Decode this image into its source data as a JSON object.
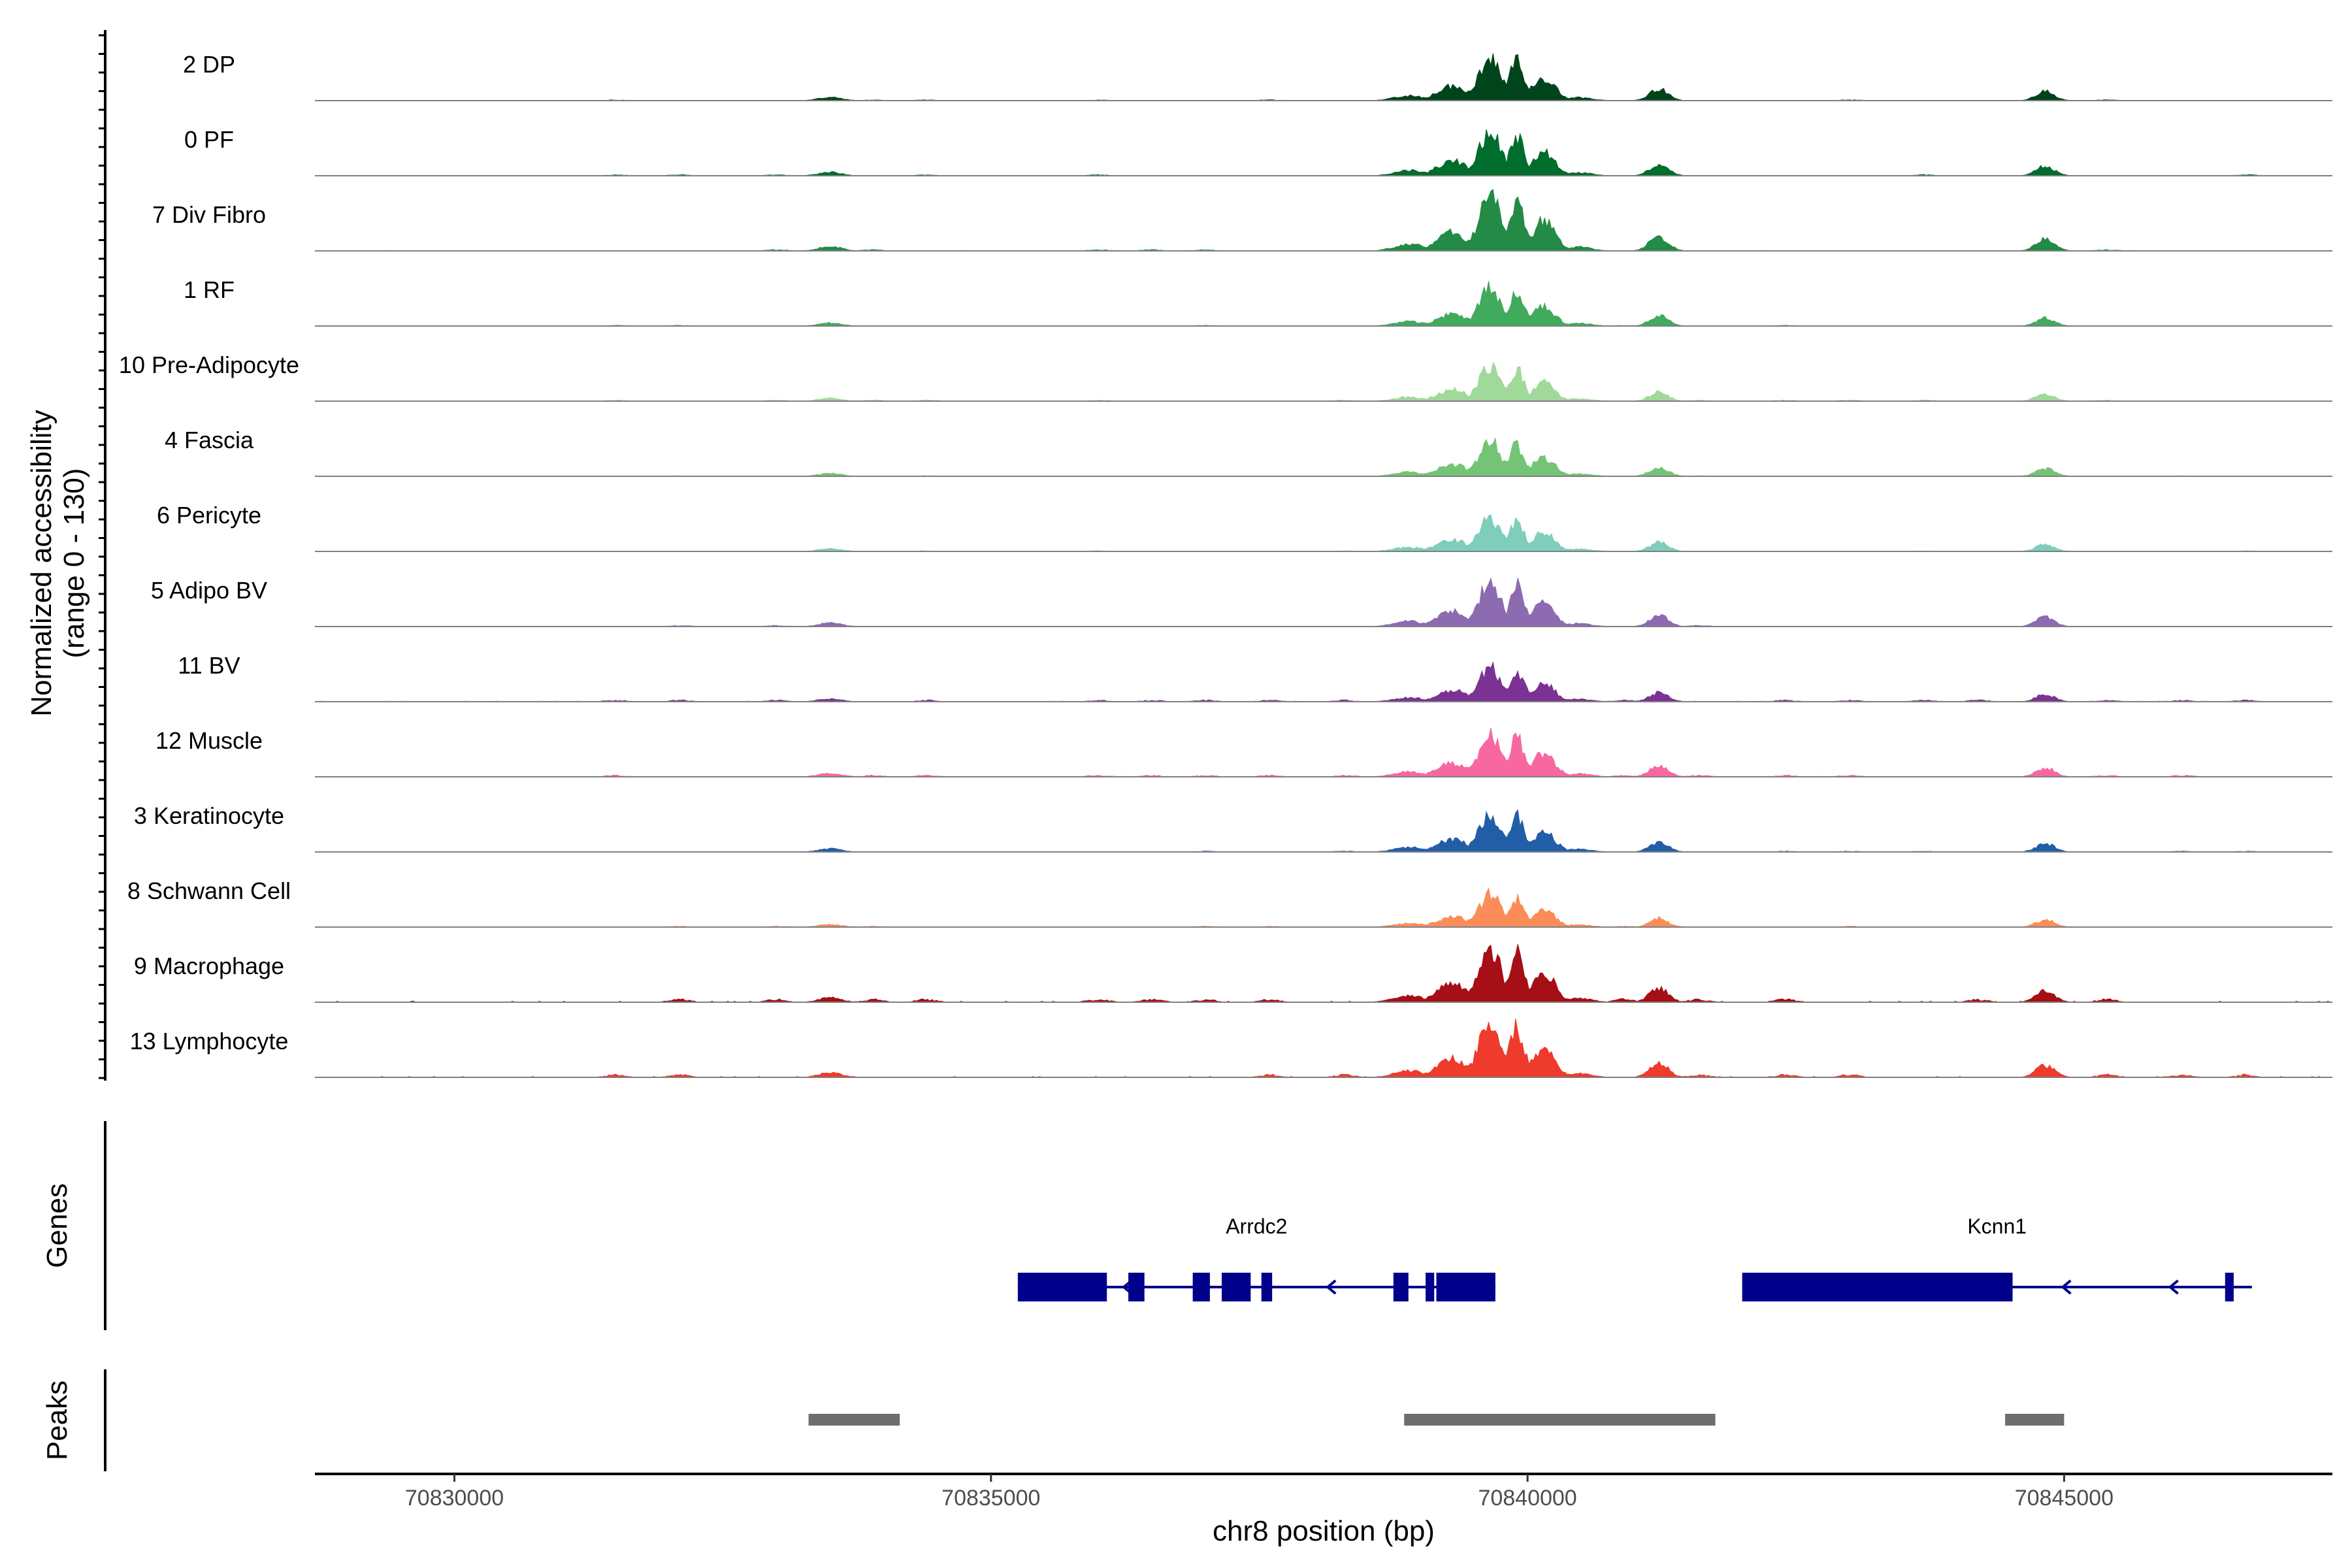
{
  "chart_data": {
    "type": "area",
    "region": {
      "chromosome": "chr8",
      "start": 70828700,
      "end": 70847500
    },
    "coverage": {
      "ylabel_line1": "Normalized accessibility",
      "ylabel_line2": "(range 0 - 130)",
      "ylim": [
        0,
        130
      ],
      "tracks": [
        {
          "name": "2 DP",
          "color": "#00441b",
          "scale": 0.78,
          "noise": 0.4
        },
        {
          "name": "0 PF",
          "color": "#006d2c",
          "scale": 0.8,
          "noise": 0.55
        },
        {
          "name": "7 Div Fibro",
          "color": "#238b45",
          "scale": 1.0,
          "noise": 0.5
        },
        {
          "name": "1 RF",
          "color": "#41ab5d",
          "scale": 0.68,
          "noise": 0.45
        },
        {
          "name": "10 Pre-Adipocyte",
          "color": "#a1d99b",
          "scale": 0.62,
          "noise": 0.75
        },
        {
          "name": "4 Fascia",
          "color": "#74c476",
          "scale": 0.64,
          "noise": 0.35
        },
        {
          "name": "6 Pericyte",
          "color": "#7fcdbb",
          "scale": 0.62,
          "noise": 0.4
        },
        {
          "name": "5 Adipo BV",
          "color": "#8c6bb1",
          "scale": 0.8,
          "noise": 0.55
        },
        {
          "name": "11 BV",
          "color": "#7b3294",
          "scale": 0.62,
          "noise": 1.05
        },
        {
          "name": "12 Muscle",
          "color": "#f768a1",
          "scale": 0.78,
          "noise": 0.85
        },
        {
          "name": "3 Keratinocyte",
          "color": "#225ea8",
          "scale": 0.7,
          "noise": 0.45
        },
        {
          "name": "8 Schwann Cell",
          "color": "#fc8d59",
          "scale": 0.6,
          "noise": 0.55
        },
        {
          "name": "9 Macrophage",
          "color": "#a50f15",
          "scale": 1.0,
          "noise": 1.3
        },
        {
          "name": "13 Lymphocyte",
          "color": "#ef3b2c",
          "scale": 1.0,
          "noise": 1.15
        }
      ]
    },
    "genes": {
      "label": "Genes",
      "color": "#00008b",
      "items": [
        {
          "name": "Arrdc2",
          "strand": "-",
          "start": 70835250,
          "end": 70839700,
          "exons": [
            [
              70835250,
              70836080
            ],
            [
              70836280,
              70836430
            ],
            [
              70836880,
              70837040
            ],
            [
              70837150,
              70837420
            ],
            [
              70837520,
              70837620
            ],
            [
              70838750,
              70838890
            ],
            [
              70839050,
              70839130
            ],
            [
              70839150,
              70839700
            ]
          ],
          "arrows": [
            70836250,
            70838150
          ]
        },
        {
          "name": "Kcnn1",
          "strand": "-",
          "start": 70842000,
          "end": 70846750,
          "exons": [
            [
              70842000,
              70844520
            ],
            [
              70846500,
              70846580
            ]
          ],
          "arrows": [
            70845000,
            70846000
          ]
        }
      ]
    },
    "peaks": {
      "label": "Peaks",
      "color": "#6e6e6e",
      "items": [
        [
          70833300,
          70834150
        ],
        [
          70838850,
          70841750
        ],
        [
          70844450,
          70845000
        ]
      ]
    },
    "xaxis": {
      "label": "chr8 position (bp)",
      "ticks": [
        70830000,
        70835000,
        70840000,
        70845000
      ],
      "tick_labels": [
        "70830000",
        "70835000",
        "70840000",
        "70845000"
      ]
    },
    "grid": false,
    "legend": "none"
  }
}
